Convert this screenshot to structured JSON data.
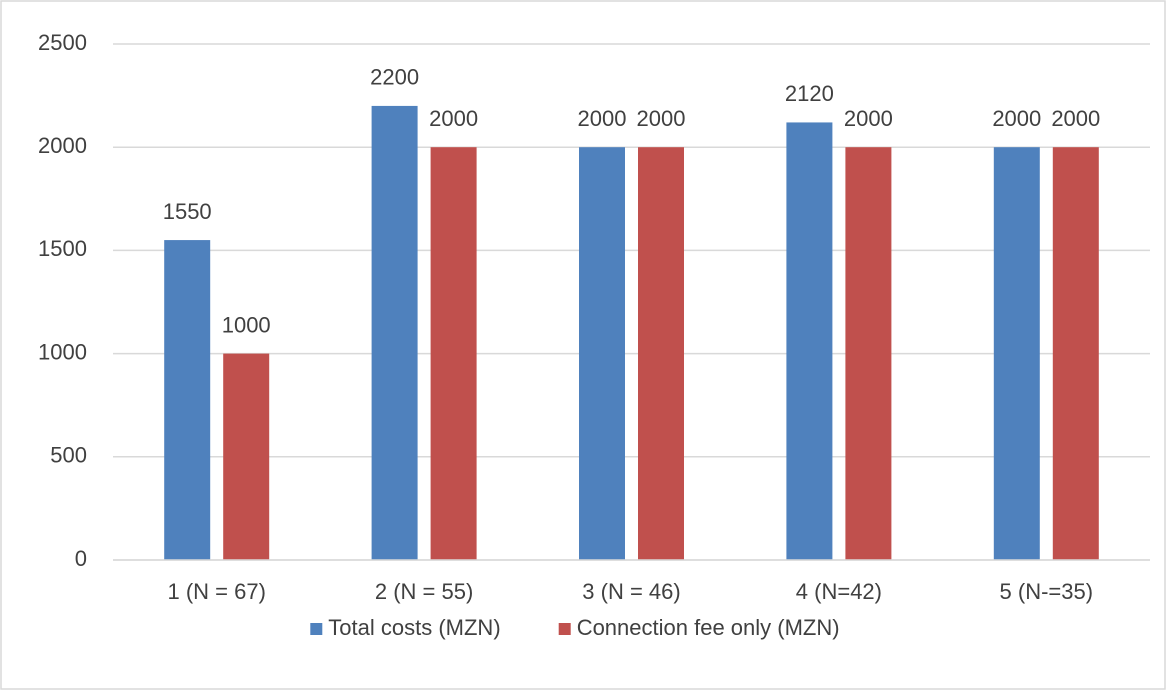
{
  "chart_data": {
    "type": "bar",
    "categories": [
      "1 (N = 67)",
      "2 (N = 55)",
      "3 (N = 46)",
      "4 (N=42)",
      "5 (N-=35)"
    ],
    "series": [
      {
        "name": "Total costs (MZN)",
        "color": "#4f81bd",
        "values": [
          1550,
          2200,
          2000,
          2120,
          2000
        ]
      },
      {
        "name": "Connection fee only (MZN)",
        "color": "#c0504d",
        "values": [
          1000,
          2000,
          2000,
          2000,
          2000
        ]
      }
    ],
    "ylim": [
      0,
      2500
    ],
    "yticks": [
      0,
      500,
      1000,
      1500,
      2000,
      2500
    ],
    "grid": true,
    "legend": "bottom"
  }
}
